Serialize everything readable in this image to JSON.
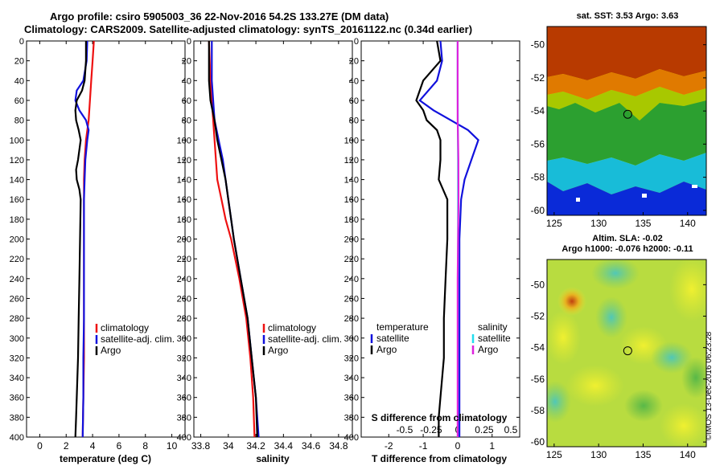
{
  "title": {
    "line1": "Argo profile: csiro 5905003_36 22-Nov-2016 54.2S 133.27E (DM data)",
    "line2": "Climatology: CARS2009. Satellite-adjusted climatology: synTS_20161122.nc (0.34d earlier)"
  },
  "watermark": "©IMOS 13-Dec-2016 06:23:28",
  "colors": {
    "climatology": "#ee1111",
    "satellite": "#1111dd",
    "argo": "#000000",
    "sal_satellite": "#22ddee",
    "sal_climatology": "#dd22dd"
  },
  "chart_data": [
    {
      "type": "line",
      "name": "temperature",
      "xlabel": "temperature (deg C)",
      "xlim": [
        -1,
        11
      ],
      "xticks": [
        "0",
        "2",
        "4",
        "6",
        "8",
        "10"
      ],
      "xtick_values": [
        0,
        2,
        4,
        6,
        8,
        10
      ],
      "ylim": [
        0,
        400
      ],
      "yticks": [
        "0",
        "20",
        "40",
        "60",
        "80",
        "100",
        "120",
        "140",
        "160",
        "180",
        "200",
        "220",
        "240",
        "260",
        "280",
        "300",
        "320",
        "340",
        "360",
        "380",
        "400"
      ],
      "legend": [
        "climatology",
        "satellite-adj. clim.",
        "Argo"
      ],
      "series": [
        {
          "name": "climatology",
          "depth": [
            0,
            20,
            40,
            60,
            80,
            100,
            120,
            140,
            160,
            200,
            240,
            280,
            320,
            360,
            400
          ],
          "values": [
            4.1,
            4.0,
            3.9,
            3.8,
            3.7,
            3.5,
            3.4,
            3.35,
            3.35,
            3.35,
            3.35,
            3.35,
            3.35,
            3.3,
            3.25
          ]
        },
        {
          "name": "satellite-adj. clim.",
          "depth": [
            0,
            20,
            40,
            50,
            60,
            70,
            80,
            90,
            100,
            120,
            140,
            160,
            200,
            240,
            280,
            320,
            360,
            400
          ],
          "values": [
            3.6,
            3.55,
            3.3,
            2.8,
            2.7,
            3.0,
            3.5,
            3.7,
            3.6,
            3.45,
            3.4,
            3.35,
            3.35,
            3.35,
            3.35,
            3.3,
            3.3,
            3.25
          ]
        },
        {
          "name": "Argo",
          "depth": [
            0,
            20,
            40,
            50,
            60,
            70,
            80,
            90,
            100,
            120,
            130,
            140,
            150,
            160,
            200,
            240,
            280,
            320,
            360,
            380,
            400
          ],
          "values": [
            3.5,
            3.5,
            3.4,
            3.2,
            2.8,
            2.7,
            2.75,
            2.95,
            3.1,
            2.9,
            2.75,
            2.8,
            3.0,
            3.1,
            3.05,
            3.0,
            2.95,
            2.9,
            2.8,
            2.75,
            2.7
          ]
        }
      ]
    },
    {
      "type": "line",
      "name": "salinity",
      "xlabel": "salinity",
      "xlim": [
        33.75,
        34.9
      ],
      "xticks": [
        "33.8",
        "34",
        "34.2",
        "34.4",
        "34.6",
        "34.8"
      ],
      "xtick_values": [
        33.8,
        34.0,
        34.2,
        34.4,
        34.6,
        34.8
      ],
      "ylim": [
        0,
        400
      ],
      "legend": [
        "climatology",
        "satellite-adj. clim.",
        "Argo"
      ],
      "series": [
        {
          "name": "climatology",
          "depth": [
            0,
            40,
            80,
            100,
            120,
            140,
            160,
            180,
            200,
            240,
            280,
            320,
            360,
            400
          ],
          "values": [
            33.86,
            33.87,
            33.89,
            33.9,
            33.91,
            33.92,
            33.95,
            33.98,
            34.02,
            34.08,
            34.13,
            34.16,
            34.18,
            34.19
          ]
        },
        {
          "name": "satellite-adj. clim.",
          "depth": [
            0,
            40,
            80,
            100,
            120,
            140,
            160,
            180,
            200,
            240,
            280,
            320,
            360,
            400
          ],
          "values": [
            33.88,
            33.88,
            33.9,
            33.93,
            33.96,
            33.98,
            34.0,
            34.02,
            34.04,
            34.09,
            34.14,
            34.17,
            34.2,
            34.22
          ]
        },
        {
          "name": "Argo",
          "depth": [
            0,
            40,
            60,
            80,
            100,
            120,
            140,
            160,
            180,
            200,
            240,
            280,
            320,
            360,
            400
          ],
          "values": [
            33.86,
            33.86,
            33.87,
            33.9,
            33.92,
            33.95,
            33.98,
            34.0,
            34.02,
            34.04,
            34.09,
            34.14,
            34.17,
            34.2,
            34.21
          ]
        }
      ]
    },
    {
      "type": "line",
      "name": "difference",
      "xlabel": "T difference from climatology",
      "top_label": "S difference from climatology",
      "xlim": [
        -2.8,
        1.8
      ],
      "xticks": [
        "-2",
        "-1",
        "0",
        "1"
      ],
      "xtick_values": [
        -2,
        -1,
        0,
        1
      ],
      "sticks": [
        "-0.5",
        "-0.25",
        "0",
        "0.25",
        "0.5"
      ],
      "stick_values": [
        -0.5,
        -0.25,
        0,
        0.25,
        0.5
      ],
      "ylim": [
        0,
        400
      ],
      "legend_temperature": {
        "title": "temperature",
        "items": [
          "satellite",
          "Argo"
        ]
      },
      "legend_salinity": {
        "title": "salinity",
        "items": [
          "satellite",
          "Argo"
        ]
      },
      "series": [
        {
          "name": "T satellite",
          "depth": [
            0,
            20,
            40,
            60,
            70,
            80,
            90,
            100,
            120,
            140,
            160,
            200,
            400
          ],
          "values": [
            -0.5,
            -0.45,
            -0.6,
            -1.1,
            -0.7,
            -0.2,
            0.3,
            0.6,
            0.4,
            0.2,
            0.1,
            0.05,
            0.05
          ]
        },
        {
          "name": "T Argo",
          "depth": [
            0,
            20,
            40,
            60,
            70,
            80,
            90,
            100,
            120,
            140,
            160,
            200,
            240,
            280,
            320,
            360,
            380,
            400
          ],
          "values": [
            -0.6,
            -0.5,
            -1.0,
            -1.2,
            -1.0,
            -0.9,
            -0.6,
            -0.5,
            -0.5,
            -0.55,
            -0.3,
            -0.3,
            -0.35,
            -0.4,
            -0.4,
            -0.5,
            -0.55,
            -0.55
          ]
        },
        {
          "name": "S satellite",
          "depth": [
            0,
            40,
            80,
            120,
            160,
            200,
            240,
            280,
            320,
            360,
            400
          ],
          "values": [
            0.0,
            0.0,
            0.01,
            0.02,
            0.02,
            0.02,
            0.01,
            0.01,
            0.01,
            0.01,
            0.01
          ]
        },
        {
          "name": "S Argo",
          "depth": [
            0,
            40,
            80,
            100,
            120,
            160,
            200,
            240,
            280,
            320,
            360,
            400
          ],
          "values": [
            0.0,
            0.0,
            0.0,
            0.02,
            0.04,
            0.05,
            0.02,
            0.0,
            0.0,
            0.0,
            0.0,
            0.0
          ]
        }
      ]
    },
    {
      "type": "heatmap",
      "name": "sst_map",
      "title": "sat. SST: 3.53 Argo: 3.63",
      "xticks": [
        "125",
        "130",
        "135",
        "140"
      ],
      "xtick_values": [
        125,
        130,
        135,
        140
      ],
      "yticks": [
        "-50",
        "-52",
        "-54",
        "-56",
        "-58",
        "-60"
      ],
      "ytick_values": [
        -50,
        -52,
        -54,
        -56,
        -58,
        -60
      ],
      "xlim": [
        124.2,
        142.1
      ],
      "ylim": [
        -60.3,
        -48.9
      ],
      "marker": {
        "lon": 133.27,
        "lat": -54.2
      }
    },
    {
      "type": "heatmap",
      "name": "sla_map",
      "title": "Altim. SLA: -0.02",
      "subtitle": "Argo h1000: -0.076 h2000: -0.11",
      "xticks": [
        "125",
        "130",
        "135",
        "140"
      ],
      "xtick_values": [
        125,
        130,
        135,
        140
      ],
      "yticks": [
        "-50",
        "-52",
        "-54",
        "-56",
        "-58",
        "-60"
      ],
      "ytick_values": [
        -50,
        -52,
        -54,
        -56,
        -58,
        -60
      ],
      "xlim": [
        124.2,
        142.1
      ],
      "ylim": [
        -60.3,
        -48.4
      ],
      "marker": {
        "lon": 133.27,
        "lat": -54.2
      }
    }
  ]
}
